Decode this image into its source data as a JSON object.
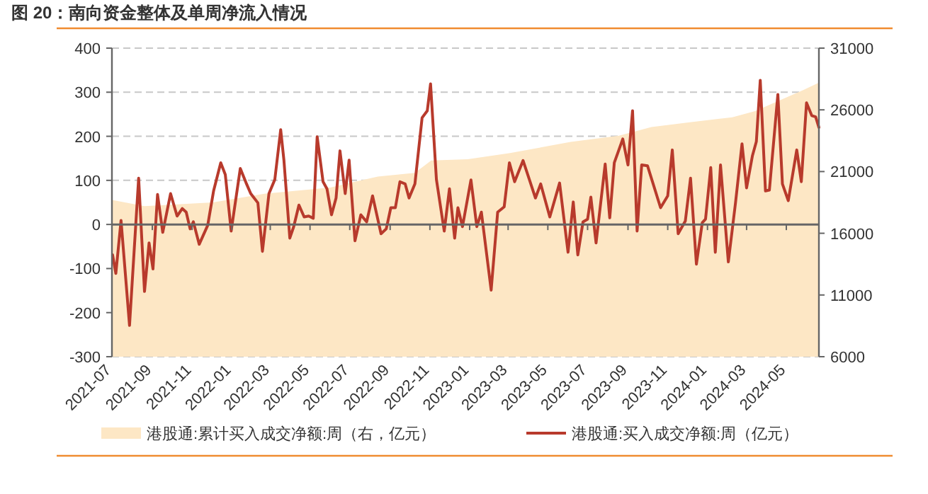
{
  "chart_data": {
    "type": "line",
    "title": "图 20：南向资金整体及单周净流入情况",
    "xlim": [
      "2021-07-01",
      "2024-06-20"
    ],
    "xticks": [
      "2021-07",
      "2021-09",
      "2021-11",
      "2022-01",
      "2022-03",
      "2022-05",
      "2022-07",
      "2022-09",
      "2022-11",
      "2023-01",
      "2023-03",
      "2023-05",
      "2023-07",
      "2023-09",
      "2023-11",
      "2024-01",
      "2024-03",
      "2024-05"
    ],
    "ylim": [
      -300,
      400
    ],
    "yticks": [
      -300,
      -200,
      -100,
      0,
      100,
      200,
      300,
      400
    ],
    "y2lim": [
      6000,
      31000
    ],
    "y2ticks": [
      6000,
      11000,
      16000,
      21000,
      26000,
      31000
    ],
    "grid": "y",
    "legend": "bottom",
    "series": [
      {
        "name": "港股通:累计买入成交净额:周（右，亿元）",
        "type": "area",
        "axis": "y2",
        "color": "#fde7c5",
        "x": [
          "2021-07-01",
          "2021-08-20",
          "2021-12-03",
          "2022-02-20",
          "2022-06-01",
          "2022-08-13",
          "2022-10-09",
          "2022-11-03",
          "2022-12-29",
          "2023-03-04",
          "2023-06-05",
          "2023-08-18",
          "2023-10-07",
          "2023-12-05",
          "2024-02-08",
          "2024-03-14",
          "2024-05-27",
          "2024-06-20"
        ],
        "values": [
          18700,
          18200,
          18500,
          19200,
          19700,
          20600,
          20900,
          21900,
          22000,
          22500,
          23400,
          23900,
          24600,
          25000,
          25400,
          25900,
          27600,
          28200
        ]
      },
      {
        "name": "港股通:买入成交净额:周（亿元）",
        "color": "#b83a2c",
        "x": [
          "2021-07-02",
          "2021-07-07",
          "2021-07-15",
          "2021-07-28",
          "2021-08-11",
          "2021-08-20",
          "2021-08-27",
          "2021-09-02",
          "2021-09-09",
          "2021-09-17",
          "2021-09-29",
          "2021-10-09",
          "2021-10-17",
          "2021-10-23",
          "2021-10-29",
          "2021-11-03",
          "2021-11-12",
          "2021-11-25",
          "2021-12-04",
          "2021-12-15",
          "2021-12-22",
          "2021-12-31",
          "2022-01-14",
          "2022-01-23",
          "2022-01-30",
          "2022-02-10",
          "2022-02-17",
          "2022-02-27",
          "2022-03-08",
          "2022-03-17",
          "2022-03-22",
          "2022-03-31",
          "2022-04-06",
          "2022-04-14",
          "2022-04-22",
          "2022-04-29",
          "2022-05-06",
          "2022-05-12",
          "2022-05-21",
          "2022-05-27",
          "2022-06-03",
          "2022-06-10",
          "2022-06-16",
          "2022-06-24",
          "2022-06-30",
          "2022-07-09",
          "2022-07-18",
          "2022-07-27",
          "2022-08-05",
          "2022-08-18",
          "2022-08-26",
          "2022-09-02",
          "2022-09-09",
          "2022-09-16",
          "2022-09-24",
          "2022-09-30",
          "2022-10-09",
          "2022-10-20",
          "2022-10-28",
          "2022-11-02",
          "2022-11-11",
          "2022-11-23",
          "2022-12-01",
          "2022-12-09",
          "2022-12-14",
          "2022-12-21",
          "2023-01-03",
          "2023-01-12",
          "2023-01-19",
          "2023-02-03",
          "2023-02-13",
          "2023-02-23",
          "2023-03-03",
          "2023-03-11",
          "2023-03-24",
          "2023-04-12",
          "2023-04-20",
          "2023-05-04",
          "2023-05-19",
          "2023-06-01",
          "2023-06-09",
          "2023-06-16",
          "2023-06-24",
          "2023-07-01",
          "2023-07-06",
          "2023-07-14",
          "2023-07-28",
          "2023-08-04",
          "2023-08-11",
          "2023-08-24",
          "2023-09-01",
          "2023-09-08",
          "2023-09-15",
          "2023-09-22",
          "2023-10-01",
          "2023-10-21",
          "2023-11-01",
          "2023-11-08",
          "2023-11-17",
          "2023-11-28",
          "2023-12-06",
          "2023-12-15",
          "2023-12-24",
          "2023-12-29",
          "2024-01-06",
          "2024-01-13",
          "2024-01-21",
          "2024-02-02",
          "2024-02-13",
          "2024-02-23",
          "2024-03-01",
          "2024-03-10",
          "2024-03-16",
          "2024-03-22",
          "2024-03-30",
          "2024-04-05",
          "2024-04-18",
          "2024-04-25",
          "2024-05-04",
          "2024-05-17",
          "2024-05-24",
          "2024-06-01",
          "2024-06-09",
          "2024-06-15",
          "2024-06-20"
        ],
        "values": [
          -69,
          -111,
          9,
          -229,
          105,
          -152,
          -42,
          -101,
          68,
          -18,
          70,
          19,
          36,
          28,
          -10,
          6,
          -45,
          -2,
          76,
          140,
          113,
          -15,
          127,
          94,
          70,
          49,
          -61,
          70,
          102,
          215,
          145,
          -31,
          -5,
          44,
          17,
          19,
          14,
          199,
          97,
          81,
          22,
          60,
          167,
          70,
          146,
          -37,
          22,
          6,
          65,
          -21,
          -10,
          38,
          38,
          97,
          92,
          60,
          92,
          242,
          258,
          319,
          102,
          -15,
          81,
          -31,
          38,
          -5,
          101,
          -5,
          28,
          -149,
          28,
          40,
          140,
          97,
          145,
          60,
          92,
          17,
          94,
          -63,
          51,
          -69,
          6,
          12,
          62,
          -42,
          137,
          15,
          140,
          194,
          135,
          258,
          -15,
          135,
          133,
          38,
          65,
          169,
          -21,
          8,
          105,
          -90,
          4,
          12,
          129,
          -63,
          135,
          -85,
          49,
          183,
          83,
          156,
          188,
          327,
          76,
          78,
          295,
          92,
          54,
          169,
          97,
          276,
          247,
          244,
          220
        ]
      }
    ]
  }
}
